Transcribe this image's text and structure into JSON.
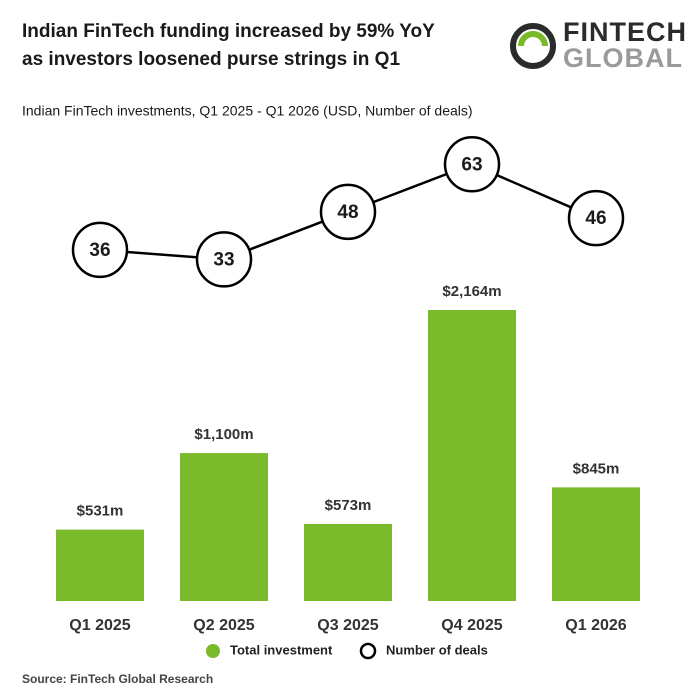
{
  "logo": {
    "line1": "FINTECH",
    "line2": "GLOBAL"
  },
  "chart_data": {
    "type": "bar",
    "title": [
      "Indian FinTech funding increased by 59% YoY",
      "as investors loosened purse strings in Q1"
    ],
    "subtitle": "Indian FinTech investments, Q1 2025 - Q1 2026 (USD, Number of deals)",
    "categories": [
      "Q1 2025",
      "Q2 2025",
      "Q3 2025",
      "Q4 2025",
      "Q1 2026"
    ],
    "series": [
      {
        "name": "Total investment",
        "type": "bar",
        "color": "#7ab929",
        "values": [
          531,
          1100,
          573,
          2164,
          845
        ],
        "value_labels": [
          "$531m",
          "$1,100m",
          "$573m",
          "$2,164m",
          "$845m"
        ]
      },
      {
        "name": "Number of deals",
        "type": "line",
        "color": "#000000",
        "values": [
          36,
          33,
          48,
          63,
          46
        ]
      }
    ],
    "source": "Source: FinTech Global Research"
  }
}
